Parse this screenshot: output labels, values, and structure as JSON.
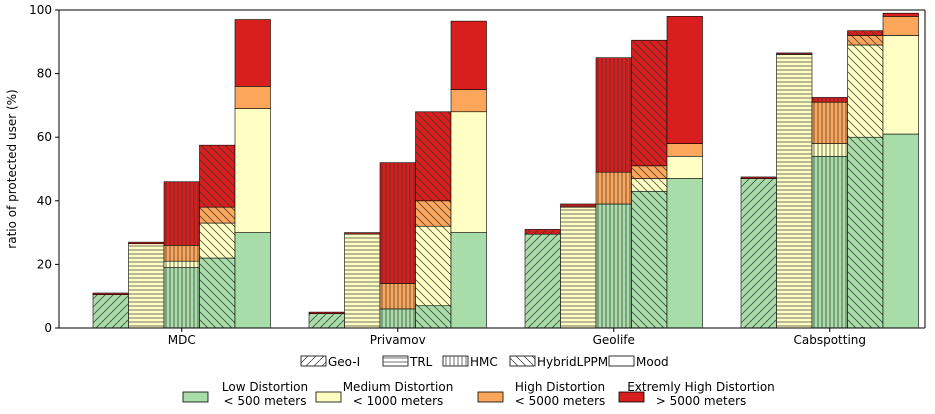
{
  "chart_data": {
    "type": "bar",
    "stacked": true,
    "grouped": true,
    "ylabel": "ratio of protected user (%)",
    "ylim": [
      0,
      100
    ],
    "yticks": [
      0,
      20,
      40,
      60,
      80,
      100
    ],
    "categories": [
      "MDC",
      "Privamov",
      "Geolife",
      "Cabspotting"
    ],
    "methods": [
      "Geo-I",
      "TRL",
      "HMC",
      "HybridLPPM",
      "Mood"
    ],
    "method_hatches": {
      "Geo-I": "diag-up",
      "TRL": "horizontal",
      "HMC": "vertical",
      "HybridLPPM": "diag-down",
      "Mood": "none"
    },
    "distortion_levels": [
      {
        "name": "Low Distortion",
        "sub": "< 500 meters",
        "color": "#a8dca8"
      },
      {
        "name": "Medium Distortion",
        "sub": "< 1000 meters",
        "color": "#ffffc4"
      },
      {
        "name": "High Distortion",
        "sub": "< 5000 meters",
        "color": "#fca65c"
      },
      {
        "name": "Extremly High Distortion",
        "sub": "> 5000 meters",
        "color": "#d91e1e"
      }
    ],
    "values": {
      "MDC": {
        "Geo-I": [
          10.5,
          0,
          0,
          0.5
        ],
        "TRL": [
          0,
          26.5,
          0,
          0.5
        ],
        "HMC": [
          19,
          2,
          5,
          20
        ],
        "HybridLPPM": [
          22,
          11,
          5,
          19.5
        ],
        "Mood": [
          30,
          39,
          7,
          21
        ]
      },
      "Privamov": {
        "Geo-I": [
          4.5,
          0,
          0,
          0.5
        ],
        "TRL": [
          0,
          29.5,
          0,
          0.5
        ],
        "HMC": [
          6,
          0,
          8,
          38
        ],
        "HybridLPPM": [
          7,
          25,
          8,
          28
        ],
        "Mood": [
          30,
          38,
          7,
          21.5
        ]
      },
      "Geolife": {
        "Geo-I": [
          29.5,
          0,
          0,
          1.5
        ],
        "TRL": [
          0,
          38,
          0,
          1
        ],
        "HMC": [
          39,
          0,
          10,
          36
        ],
        "HybridLPPM": [
          43,
          4,
          4,
          39.5
        ],
        "Mood": [
          47,
          7,
          4,
          40
        ]
      },
      "Cabspotting": {
        "Geo-I": [
          47,
          0,
          0,
          0.5
        ],
        "TRL": [
          0,
          86,
          0,
          0.5
        ],
        "HMC": [
          54,
          4,
          13,
          1.5
        ],
        "HybridLPPM": [
          60,
          29,
          3,
          1.5
        ],
        "Mood": [
          61,
          31,
          6,
          1
        ]
      }
    },
    "legend_placement": "bottom",
    "grid": false
  }
}
